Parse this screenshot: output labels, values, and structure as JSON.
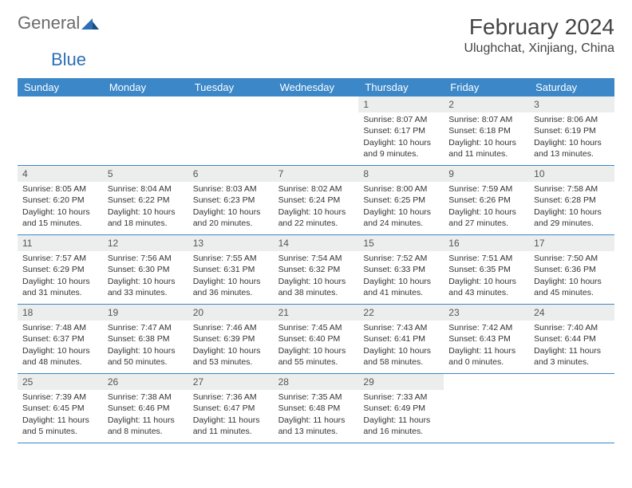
{
  "logo": {
    "part1": "General",
    "part2": "Blue"
  },
  "title": "February 2024",
  "location": "Ulughchat, Xinjiang, China",
  "colors": {
    "header_bg": "#3b87c8",
    "header_text": "#ffffff",
    "daynum_bg": "#eceded",
    "border": "#3b87c8",
    "logo_gray": "#6b6b6b",
    "logo_blue": "#2d6fb5",
    "text": "#333333",
    "background": "#ffffff"
  },
  "typography": {
    "title_fontsize": 28,
    "location_fontsize": 16,
    "dayheader_fontsize": 13,
    "cell_fontsize": 10.5
  },
  "day_names": [
    "Sunday",
    "Monday",
    "Tuesday",
    "Wednesday",
    "Thursday",
    "Friday",
    "Saturday"
  ],
  "weeks": [
    [
      {
        "n": "",
        "sunrise": "",
        "sunset": "",
        "daylight": ""
      },
      {
        "n": "",
        "sunrise": "",
        "sunset": "",
        "daylight": ""
      },
      {
        "n": "",
        "sunrise": "",
        "sunset": "",
        "daylight": ""
      },
      {
        "n": "",
        "sunrise": "",
        "sunset": "",
        "daylight": ""
      },
      {
        "n": "1",
        "sunrise": "Sunrise: 8:07 AM",
        "sunset": "Sunset: 6:17 PM",
        "daylight": "Daylight: 10 hours and 9 minutes."
      },
      {
        "n": "2",
        "sunrise": "Sunrise: 8:07 AM",
        "sunset": "Sunset: 6:18 PM",
        "daylight": "Daylight: 10 hours and 11 minutes."
      },
      {
        "n": "3",
        "sunrise": "Sunrise: 8:06 AM",
        "sunset": "Sunset: 6:19 PM",
        "daylight": "Daylight: 10 hours and 13 minutes."
      }
    ],
    [
      {
        "n": "4",
        "sunrise": "Sunrise: 8:05 AM",
        "sunset": "Sunset: 6:20 PM",
        "daylight": "Daylight: 10 hours and 15 minutes."
      },
      {
        "n": "5",
        "sunrise": "Sunrise: 8:04 AM",
        "sunset": "Sunset: 6:22 PM",
        "daylight": "Daylight: 10 hours and 18 minutes."
      },
      {
        "n": "6",
        "sunrise": "Sunrise: 8:03 AM",
        "sunset": "Sunset: 6:23 PM",
        "daylight": "Daylight: 10 hours and 20 minutes."
      },
      {
        "n": "7",
        "sunrise": "Sunrise: 8:02 AM",
        "sunset": "Sunset: 6:24 PM",
        "daylight": "Daylight: 10 hours and 22 minutes."
      },
      {
        "n": "8",
        "sunrise": "Sunrise: 8:00 AM",
        "sunset": "Sunset: 6:25 PM",
        "daylight": "Daylight: 10 hours and 24 minutes."
      },
      {
        "n": "9",
        "sunrise": "Sunrise: 7:59 AM",
        "sunset": "Sunset: 6:26 PM",
        "daylight": "Daylight: 10 hours and 27 minutes."
      },
      {
        "n": "10",
        "sunrise": "Sunrise: 7:58 AM",
        "sunset": "Sunset: 6:28 PM",
        "daylight": "Daylight: 10 hours and 29 minutes."
      }
    ],
    [
      {
        "n": "11",
        "sunrise": "Sunrise: 7:57 AM",
        "sunset": "Sunset: 6:29 PM",
        "daylight": "Daylight: 10 hours and 31 minutes."
      },
      {
        "n": "12",
        "sunrise": "Sunrise: 7:56 AM",
        "sunset": "Sunset: 6:30 PM",
        "daylight": "Daylight: 10 hours and 33 minutes."
      },
      {
        "n": "13",
        "sunrise": "Sunrise: 7:55 AM",
        "sunset": "Sunset: 6:31 PM",
        "daylight": "Daylight: 10 hours and 36 minutes."
      },
      {
        "n": "14",
        "sunrise": "Sunrise: 7:54 AM",
        "sunset": "Sunset: 6:32 PM",
        "daylight": "Daylight: 10 hours and 38 minutes."
      },
      {
        "n": "15",
        "sunrise": "Sunrise: 7:52 AM",
        "sunset": "Sunset: 6:33 PM",
        "daylight": "Daylight: 10 hours and 41 minutes."
      },
      {
        "n": "16",
        "sunrise": "Sunrise: 7:51 AM",
        "sunset": "Sunset: 6:35 PM",
        "daylight": "Daylight: 10 hours and 43 minutes."
      },
      {
        "n": "17",
        "sunrise": "Sunrise: 7:50 AM",
        "sunset": "Sunset: 6:36 PM",
        "daylight": "Daylight: 10 hours and 45 minutes."
      }
    ],
    [
      {
        "n": "18",
        "sunrise": "Sunrise: 7:48 AM",
        "sunset": "Sunset: 6:37 PM",
        "daylight": "Daylight: 10 hours and 48 minutes."
      },
      {
        "n": "19",
        "sunrise": "Sunrise: 7:47 AM",
        "sunset": "Sunset: 6:38 PM",
        "daylight": "Daylight: 10 hours and 50 minutes."
      },
      {
        "n": "20",
        "sunrise": "Sunrise: 7:46 AM",
        "sunset": "Sunset: 6:39 PM",
        "daylight": "Daylight: 10 hours and 53 minutes."
      },
      {
        "n": "21",
        "sunrise": "Sunrise: 7:45 AM",
        "sunset": "Sunset: 6:40 PM",
        "daylight": "Daylight: 10 hours and 55 minutes."
      },
      {
        "n": "22",
        "sunrise": "Sunrise: 7:43 AM",
        "sunset": "Sunset: 6:41 PM",
        "daylight": "Daylight: 10 hours and 58 minutes."
      },
      {
        "n": "23",
        "sunrise": "Sunrise: 7:42 AM",
        "sunset": "Sunset: 6:43 PM",
        "daylight": "Daylight: 11 hours and 0 minutes."
      },
      {
        "n": "24",
        "sunrise": "Sunrise: 7:40 AM",
        "sunset": "Sunset: 6:44 PM",
        "daylight": "Daylight: 11 hours and 3 minutes."
      }
    ],
    [
      {
        "n": "25",
        "sunrise": "Sunrise: 7:39 AM",
        "sunset": "Sunset: 6:45 PM",
        "daylight": "Daylight: 11 hours and 5 minutes."
      },
      {
        "n": "26",
        "sunrise": "Sunrise: 7:38 AM",
        "sunset": "Sunset: 6:46 PM",
        "daylight": "Daylight: 11 hours and 8 minutes."
      },
      {
        "n": "27",
        "sunrise": "Sunrise: 7:36 AM",
        "sunset": "Sunset: 6:47 PM",
        "daylight": "Daylight: 11 hours and 11 minutes."
      },
      {
        "n": "28",
        "sunrise": "Sunrise: 7:35 AM",
        "sunset": "Sunset: 6:48 PM",
        "daylight": "Daylight: 11 hours and 13 minutes."
      },
      {
        "n": "29",
        "sunrise": "Sunrise: 7:33 AM",
        "sunset": "Sunset: 6:49 PM",
        "daylight": "Daylight: 11 hours and 16 minutes."
      },
      {
        "n": "",
        "sunrise": "",
        "sunset": "",
        "daylight": ""
      },
      {
        "n": "",
        "sunrise": "",
        "sunset": "",
        "daylight": ""
      }
    ]
  ]
}
